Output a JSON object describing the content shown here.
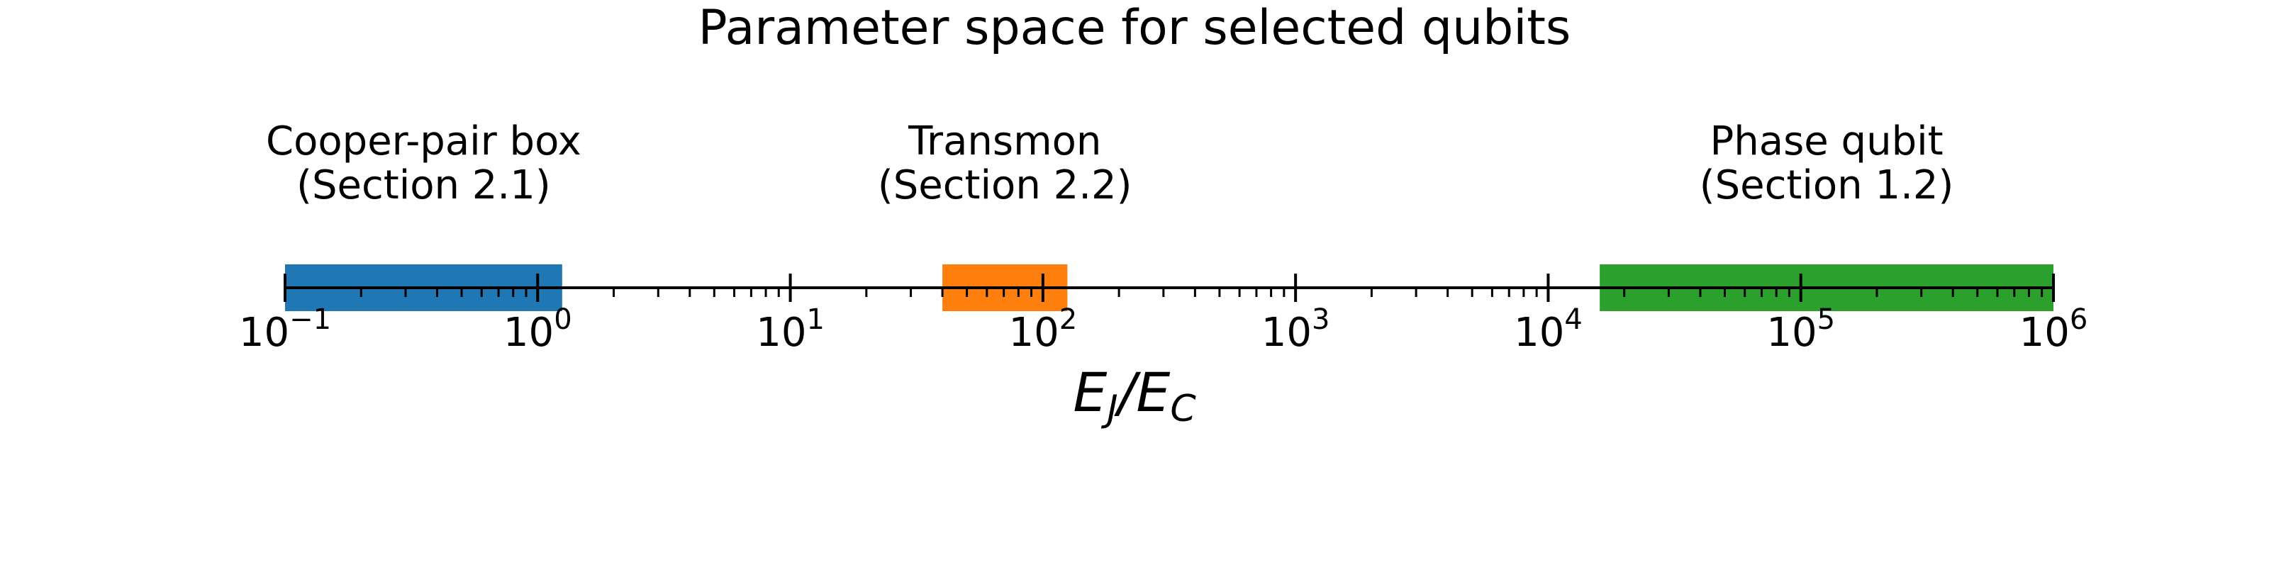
{
  "chart_data": {
    "type": "range",
    "title": "Parameter space for selected qubits",
    "xlabel": "E_J/E_C",
    "xlabel_parts": [
      "E",
      "J",
      "/",
      "E",
      "C"
    ],
    "xscale": "log",
    "xlim": [
      0.1,
      1000000
    ],
    "ylabel": "",
    "grid": false,
    "x_ticks": [
      {
        "value": 0.1,
        "base": "10",
        "exponent": "−1"
      },
      {
        "value": 1,
        "base": "10",
        "exponent": "0"
      },
      {
        "value": 10,
        "base": "10",
        "exponent": "1"
      },
      {
        "value": 100,
        "base": "10",
        "exponent": "2"
      },
      {
        "value": 1000,
        "base": "10",
        "exponent": "3"
      },
      {
        "value": 10000,
        "base": "10",
        "exponent": "4"
      },
      {
        "value": 100000,
        "base": "10",
        "exponent": "5"
      },
      {
        "value": 1000000,
        "base": "10",
        "exponent": "6"
      }
    ],
    "ranges": [
      {
        "name": "Cooper-pair box",
        "section": "(Section 2.1)",
        "start": 0.1,
        "end": 1.25,
        "color": "#1f77b4"
      },
      {
        "name": "Transmon",
        "section": "(Section 2.2)",
        "start": 40,
        "end": 125,
        "color": "#ff7f0e"
      },
      {
        "name": "Phase qubit",
        "section": "(Section 1.2)",
        "start": 16000,
        "end": 1000000,
        "color": "#2ca02c"
      }
    ]
  }
}
